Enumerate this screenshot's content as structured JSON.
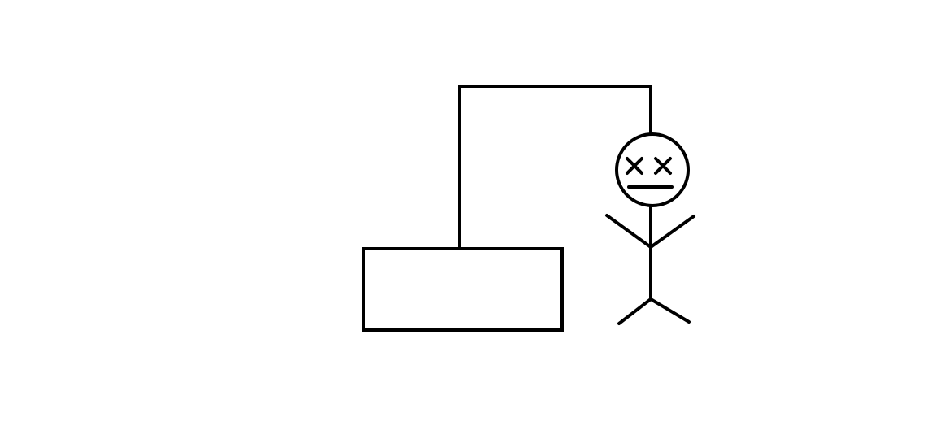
{
  "game": {
    "state": "lost",
    "figure_expression": "dead"
  },
  "colors": {
    "background": "#ffffff",
    "stroke": "#000000"
  },
  "icons": {
    "gallows": "gallows-icon",
    "hanged_figure": "stick-figure-icon",
    "head": "head-icon",
    "eyes": "x-eyes-icon",
    "mouth": "flat-mouth-icon"
  }
}
